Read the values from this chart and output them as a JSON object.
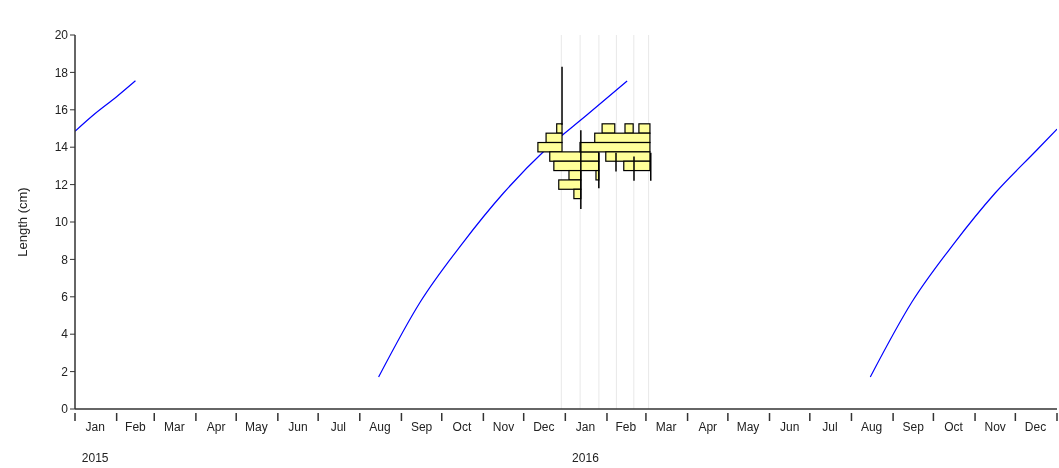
{
  "chart_data": {
    "type": "line",
    "ylabel": "Length (cm)",
    "xlim": [
      "2015-01-01",
      "2017-01-01"
    ],
    "ylim": [
      0,
      20
    ],
    "yticks": [
      0,
      2,
      4,
      6,
      8,
      10,
      12,
      14,
      16,
      18,
      20
    ],
    "xticks": [
      {
        "value": "2015-01-01",
        "label": null
      },
      {
        "value": "2015-01-16",
        "label": "Jan"
      },
      {
        "value": "2015-02-01",
        "label": null
      },
      {
        "value": "2015-02-15",
        "label": "Feb"
      },
      {
        "value": "2015-03-01",
        "label": null
      },
      {
        "value": "2015-03-16",
        "label": "Mar"
      },
      {
        "value": "2015-04-01",
        "label": null
      },
      {
        "value": "2015-04-16",
        "label": "Apr"
      },
      {
        "value": "2015-05-01",
        "label": null
      },
      {
        "value": "2015-05-16",
        "label": "May"
      },
      {
        "value": "2015-06-01",
        "label": null
      },
      {
        "value": "2015-06-16",
        "label": "Jun"
      },
      {
        "value": "2015-07-01",
        "label": null
      },
      {
        "value": "2015-07-16",
        "label": "Jul"
      },
      {
        "value": "2015-08-01",
        "label": null
      },
      {
        "value": "2015-08-16",
        "label": "Aug"
      },
      {
        "value": "2015-09-01",
        "label": null
      },
      {
        "value": "2015-09-16",
        "label": "Sep"
      },
      {
        "value": "2015-10-01",
        "label": null
      },
      {
        "value": "2015-10-16",
        "label": "Oct"
      },
      {
        "value": "2015-11-01",
        "label": null
      },
      {
        "value": "2015-11-16",
        "label": "Nov"
      },
      {
        "value": "2015-12-01",
        "label": null
      },
      {
        "value": "2015-12-16",
        "label": "Dec"
      },
      {
        "value": "2016-01-01",
        "label": null
      },
      {
        "value": "2016-01-16",
        "label": "Jan"
      },
      {
        "value": "2016-02-01",
        "label": null
      },
      {
        "value": "2016-02-15",
        "label": "Feb"
      },
      {
        "value": "2016-03-01",
        "label": null
      },
      {
        "value": "2016-03-16",
        "label": "Mar"
      },
      {
        "value": "2016-04-01",
        "label": null
      },
      {
        "value": "2016-04-16",
        "label": "Apr"
      },
      {
        "value": "2016-05-01",
        "label": null
      },
      {
        "value": "2016-05-16",
        "label": "May"
      },
      {
        "value": "2016-06-01",
        "label": null
      },
      {
        "value": "2016-06-16",
        "label": "Jun"
      },
      {
        "value": "2016-07-01",
        "label": null
      },
      {
        "value": "2016-07-16",
        "label": "Jul"
      },
      {
        "value": "2016-08-01",
        "label": null
      },
      {
        "value": "2016-08-16",
        "label": "Aug"
      },
      {
        "value": "2016-09-01",
        "label": null
      },
      {
        "value": "2016-09-16",
        "label": "Sep"
      },
      {
        "value": "2016-10-01",
        "label": null
      },
      {
        "value": "2016-10-16",
        "label": "Oct"
      },
      {
        "value": "2016-11-01",
        "label": null
      },
      {
        "value": "2016-11-16",
        "label": "Nov"
      },
      {
        "value": "2016-12-01",
        "label": null
      },
      {
        "value": "2016-12-16",
        "label": "Dec"
      },
      {
        "value": "2017-01-01",
        "label": null
      }
    ],
    "annotations": [
      "2015",
      "2016"
    ],
    "ref_lines": [
      {
        "axis": "x",
        "value": "2015-12-29",
        "color": "#e8e8e8"
      },
      {
        "axis": "x",
        "value": "2016-01-12",
        "color": "#e8e8e8"
      },
      {
        "axis": "x",
        "value": "2016-01-26",
        "color": "#e8e8e8"
      },
      {
        "axis": "x",
        "value": "2016-02-08",
        "color": "#e8e8e8"
      },
      {
        "axis": "x",
        "value": "2016-02-21",
        "color": "#e8e8e8"
      },
      {
        "axis": "x",
        "value": "2016-03-03",
        "color": "#e8e8e8"
      }
    ],
    "grid": false,
    "marker": "none",
    "line_style": "solid",
    "series": [
      {
        "color": "#0000ff",
        "x": [
          "2015-01-01",
          "2015-01-16",
          "2015-02-01",
          "2015-02-15"
        ],
        "values": [
          14.85,
          15.8,
          16.7,
          17.55
        ]
      },
      {
        "color": "#0000ff",
        "x": [
          "2015-08-15",
          "2015-09-15",
          "2015-10-16",
          "2015-11-16",
          "2015-12-17",
          "2016-01-17",
          "2016-02-16"
        ],
        "values": [
          1.71,
          5.72,
          8.82,
          11.55,
          13.85,
          15.72,
          17.54
        ]
      },
      {
        "color": "#0000ff",
        "x": [
          "2016-08-15",
          "2016-09-15",
          "2016-10-16",
          "2016-11-16",
          "2016-12-17",
          "2017-01-01"
        ],
        "values": [
          1.71,
          5.72,
          8.82,
          11.55,
          13.85,
          14.97
        ]
      }
    ]
  }
}
